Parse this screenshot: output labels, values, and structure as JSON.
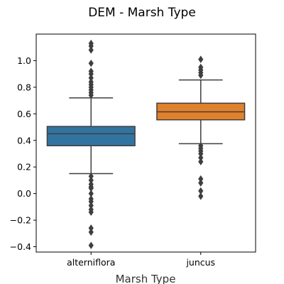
{
  "chart_data": {
    "type": "box",
    "title": "DEM - Marsh Type",
    "xlabel": "Marsh Type",
    "ylabel": "",
    "ylim": [
      -0.44,
      1.2
    ],
    "yticks": [
      1.0,
      0.8,
      0.6,
      0.4,
      0.2,
      0.0,
      -0.2,
      -0.4
    ],
    "ytick_labels": [
      "1.0",
      "0.8",
      "0.6",
      "0.4",
      "0.2",
      "0.0",
      "−0.2",
      "−0.4"
    ],
    "categories": [
      "alterniflora",
      "juncus"
    ],
    "boxes": [
      {
        "name": "alterniflora",
        "color": "#3274a1",
        "whisker_low": 0.15,
        "q1": 0.36,
        "median": 0.45,
        "q3": 0.505,
        "whisker_high": 0.72,
        "outliers": [
          1.13,
          1.11,
          1.08,
          0.98,
          0.92,
          0.9,
          0.87,
          0.84,
          0.82,
          0.8,
          0.78,
          0.76,
          0.74,
          0.13,
          0.1,
          0.07,
          0.05,
          0.04,
          0.0,
          -0.04,
          -0.06,
          -0.09,
          -0.12,
          -0.14,
          -0.26,
          -0.29,
          -0.39
        ]
      },
      {
        "name": "juncus",
        "color": "#e1812c",
        "whisker_low": 0.375,
        "q1": 0.555,
        "median": 0.615,
        "q3": 0.68,
        "whisker_high": 0.855,
        "outliers": [
          1.01,
          0.95,
          0.93,
          0.91,
          0.89,
          0.36,
          0.34,
          0.32,
          0.3,
          0.27,
          0.24,
          0.11,
          0.08,
          0.02,
          -0.02
        ]
      }
    ]
  }
}
